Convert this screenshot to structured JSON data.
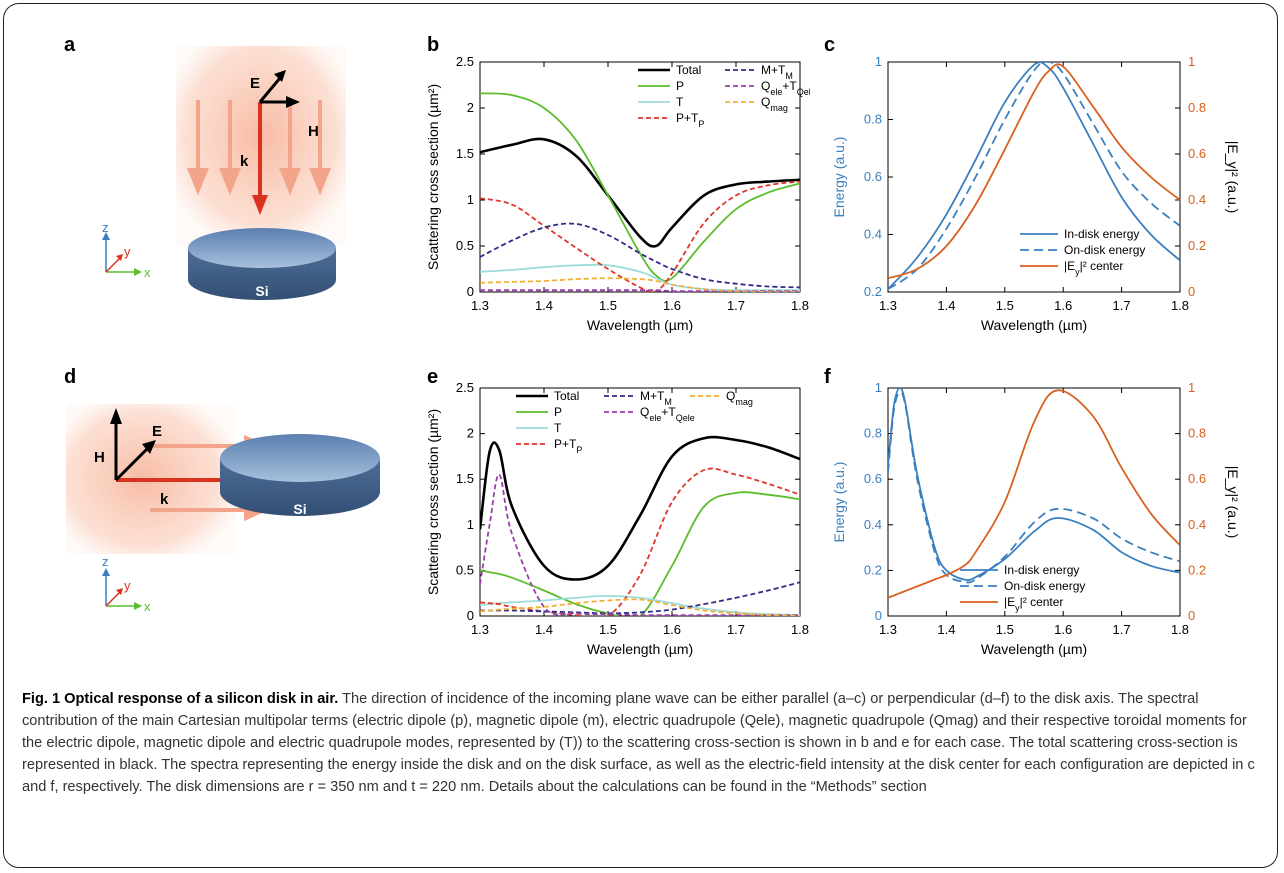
{
  "panel_labels": [
    "a",
    "b",
    "c",
    "d",
    "e",
    "f"
  ],
  "schematic": {
    "top": {
      "E": "E",
      "H": "H",
      "k": "k",
      "disk": "Si",
      "axes": {
        "z": "z",
        "y": "y",
        "x": "x"
      }
    },
    "bottom": {
      "E": "E",
      "H": "H",
      "k": "k",
      "disk": "Si",
      "axes": {
        "z": "z",
        "y": "y",
        "x": "x"
      }
    }
  },
  "colors": {
    "total": "#000000",
    "P": "#5bbd2b",
    "T": "#9edcdc",
    "PTP": "#e0362a",
    "MTM": "#2e2d87",
    "Qele": "#9b3fb0",
    "Qmag": "#f2b134",
    "energy_blue": "#3a7fc0",
    "ey_orange": "#d9601f"
  },
  "chart_data": [
    {
      "id": "b",
      "type": "line",
      "xlabel": "Wavelength (µm)",
      "ylabel": "Scattering cross section (µm²)",
      "xlim": [
        1.3,
        1.8
      ],
      "ylim": [
        0,
        2.5
      ],
      "xticks": [
        "1.3",
        "1.4",
        "1.5",
        "1.6",
        "1.7",
        "1.8"
      ],
      "yticks": [
        "0",
        "0.5",
        "1",
        "1.5",
        "2",
        "2.5"
      ],
      "x": [
        1.3,
        1.35,
        1.4,
        1.45,
        1.5,
        1.55,
        1.575,
        1.6,
        1.65,
        1.7,
        1.75,
        1.8
      ],
      "series": [
        {
          "name": "Total",
          "key": "total",
          "dash": false,
          "values": [
            1.52,
            1.6,
            1.66,
            1.48,
            1.05,
            0.6,
            0.5,
            0.7,
            1.05,
            1.17,
            1.2,
            1.22
          ]
        },
        {
          "name": "P",
          "key": "P",
          "dash": false,
          "values": [
            2.16,
            2.14,
            2.0,
            1.65,
            1.05,
            0.42,
            0.18,
            0.15,
            0.55,
            0.9,
            1.08,
            1.18
          ]
        },
        {
          "name": "T",
          "key": "T",
          "dash": false,
          "values": [
            0.22,
            0.24,
            0.27,
            0.29,
            0.29,
            0.22,
            0.15,
            0.08,
            0.03,
            0.02,
            0.02,
            0.02
          ]
        },
        {
          "name": "P+T_P",
          "key": "PTP",
          "dash": true,
          "values": [
            1.02,
            0.95,
            0.72,
            0.48,
            0.25,
            0.05,
            0.01,
            0.2,
            0.75,
            1.05,
            1.16,
            1.2
          ]
        },
        {
          "name": "M+T_M",
          "key": "MTM",
          "dash": true,
          "values": [
            0.38,
            0.56,
            0.7,
            0.74,
            0.62,
            0.42,
            0.33,
            0.25,
            0.14,
            0.09,
            0.06,
            0.05
          ]
        },
        {
          "name": "Q_ele+T_Qele",
          "key": "Qele",
          "dash": true,
          "values": [
            0.02,
            0.02,
            0.02,
            0.02,
            0.02,
            0.02,
            0.02,
            0.01,
            0.01,
            0.01,
            0.01,
            0.01
          ]
        },
        {
          "name": "Q_mag",
          "key": "Qmag",
          "dash": true,
          "values": [
            0.1,
            0.11,
            0.12,
            0.14,
            0.15,
            0.14,
            0.12,
            0.08,
            0.03,
            0.01,
            0.0,
            0.0
          ]
        }
      ],
      "legend": [
        [
          "Total",
          "P",
          "T",
          "P+T_P"
        ],
        [
          "M+T_M",
          "Q_ele+T_Qele",
          "Q_mag"
        ]
      ]
    },
    {
      "id": "c",
      "type": "line",
      "xlabel": "Wavelength (µm)",
      "ylabel": "Energy (a.u.)",
      "y2label": "|E_y|² (a.u.)",
      "xlim": [
        1.3,
        1.8
      ],
      "ylim": [
        0.2,
        1
      ],
      "y2lim": [
        0,
        1
      ],
      "xticks": [
        "1.3",
        "1.4",
        "1.5",
        "1.6",
        "1.7",
        "1.8"
      ],
      "yticks": [
        "0.2",
        "0.4",
        "0.6",
        "0.8",
        "1"
      ],
      "y2ticks": [
        "0",
        "0.2",
        "0.4",
        "0.6",
        "0.8",
        "1"
      ],
      "x": [
        1.3,
        1.35,
        1.4,
        1.45,
        1.5,
        1.55,
        1.575,
        1.6,
        1.65,
        1.7,
        1.75,
        1.8
      ],
      "series": [
        {
          "name": "In-disk energy",
          "key": "energy_blue",
          "axis": "left",
          "dash": false,
          "values": [
            0.21,
            0.32,
            0.47,
            0.66,
            0.86,
            0.99,
            0.98,
            0.91,
            0.72,
            0.53,
            0.4,
            0.31
          ]
        },
        {
          "name": "On-disk energy",
          "key": "energy_blue",
          "axis": "left",
          "dash": true,
          "values": [
            0.21,
            0.28,
            0.42,
            0.6,
            0.8,
            0.97,
            1.0,
            0.96,
            0.79,
            0.62,
            0.51,
            0.43
          ]
        },
        {
          "name": "|E_y|² center",
          "key": "ey_orange",
          "axis": "right",
          "dash": false,
          "values": [
            0.06,
            0.1,
            0.2,
            0.38,
            0.62,
            0.87,
            0.96,
            0.98,
            0.81,
            0.63,
            0.5,
            0.4
          ]
        }
      ],
      "legend": [
        "In-disk energy",
        "On-disk energy",
        "|E_y|² center"
      ]
    },
    {
      "id": "e",
      "type": "line",
      "xlabel": "Wavelength (µm)",
      "ylabel": "Scattering cross section (µm²)",
      "xlim": [
        1.3,
        1.8
      ],
      "ylim": [
        0,
        2.5
      ],
      "xticks": [
        "1.3",
        "1.4",
        "1.5",
        "1.6",
        "1.7",
        "1.8"
      ],
      "yticks": [
        "0",
        "0.5",
        "1",
        "1.5",
        "2",
        "2.5"
      ],
      "x": [
        1.3,
        1.315,
        1.33,
        1.35,
        1.4,
        1.45,
        1.5,
        1.55,
        1.6,
        1.65,
        1.7,
        1.75,
        1.8
      ],
      "series": [
        {
          "name": "Total",
          "key": "total",
          "dash": false,
          "values": [
            0.95,
            1.8,
            1.82,
            1.2,
            0.55,
            0.4,
            0.55,
            1.1,
            1.75,
            1.95,
            1.93,
            1.85,
            1.72
          ]
        },
        {
          "name": "P",
          "key": "P",
          "dash": false,
          "values": [
            0.5,
            0.48,
            0.46,
            0.42,
            0.28,
            0.13,
            0.03,
            0.0,
            0.55,
            1.2,
            1.35,
            1.33,
            1.28
          ]
        },
        {
          "name": "T",
          "key": "T",
          "dash": false,
          "values": [
            0.12,
            0.13,
            0.14,
            0.15,
            0.17,
            0.2,
            0.22,
            0.2,
            0.14,
            0.08,
            0.04,
            0.02,
            0.01
          ]
        },
        {
          "name": "P+T_P",
          "key": "PTP",
          "dash": true,
          "values": [
            0.15,
            0.14,
            0.13,
            0.1,
            0.05,
            0.01,
            0.0,
            0.45,
            1.25,
            1.6,
            1.55,
            1.45,
            1.33
          ]
        },
        {
          "name": "M+T_M",
          "key": "MTM",
          "dash": true,
          "values": [
            0.06,
            0.06,
            0.06,
            0.06,
            0.05,
            0.04,
            0.03,
            0.04,
            0.07,
            0.13,
            0.2,
            0.28,
            0.37
          ]
        },
        {
          "name": "Q_ele+T_Qele",
          "key": "Qele",
          "dash": true,
          "values": [
            0.35,
            1.0,
            1.55,
            0.9,
            0.1,
            0.03,
            0.02,
            0.01,
            0.01,
            0.01,
            0.01,
            0.01,
            0.01
          ]
        },
        {
          "name": "Q_mag",
          "key": "Qmag",
          "dash": true,
          "values": [
            0.05,
            0.06,
            0.07,
            0.08,
            0.1,
            0.14,
            0.17,
            0.18,
            0.12,
            0.06,
            0.03,
            0.01,
            0.0
          ]
        }
      ],
      "legend": [
        [
          "Total",
          "P",
          "T",
          "P+T_P"
        ],
        [
          "M+T_M",
          "Q_ele+T_Qele"
        ],
        [
          "Q_mag"
        ]
      ]
    },
    {
      "id": "f",
      "type": "line",
      "xlabel": "Wavelength (µm)",
      "ylabel": "Energy (a.u.)",
      "y2label": "|E_y|² (a.u.)",
      "xlim": [
        1.3,
        1.8
      ],
      "ylim": [
        0,
        1
      ],
      "y2lim": [
        0,
        1
      ],
      "xticks": [
        "1.3",
        "1.4",
        "1.5",
        "1.6",
        "1.7",
        "1.8"
      ],
      "yticks": [
        "0",
        "0.2",
        "0.4",
        "0.6",
        "0.8",
        "1"
      ],
      "y2ticks": [
        "0",
        "0.2",
        "0.4",
        "0.6",
        "0.8",
        "1"
      ],
      "x": [
        1.3,
        1.31,
        1.32,
        1.33,
        1.35,
        1.38,
        1.4,
        1.43,
        1.45,
        1.5,
        1.55,
        1.59,
        1.65,
        1.7,
        1.75,
        1.8
      ],
      "series": [
        {
          "name": "In-disk energy",
          "key": "energy_blue",
          "axis": "left",
          "dash": false,
          "values": [
            0.66,
            0.92,
            1.0,
            0.93,
            0.62,
            0.3,
            0.2,
            0.16,
            0.17,
            0.25,
            0.37,
            0.43,
            0.38,
            0.28,
            0.22,
            0.19
          ]
        },
        {
          "name": "On-disk energy",
          "key": "energy_blue",
          "axis": "left",
          "dash": true,
          "values": [
            0.63,
            0.9,
            0.98,
            0.92,
            0.6,
            0.28,
            0.18,
            0.15,
            0.16,
            0.26,
            0.41,
            0.47,
            0.43,
            0.34,
            0.28,
            0.24
          ]
        },
        {
          "name": "|E_y|² center",
          "key": "ey_orange",
          "axis": "right",
          "dash": false,
          "values": [
            0.08,
            0.09,
            0.1,
            0.11,
            0.13,
            0.16,
            0.18,
            0.22,
            0.28,
            0.5,
            0.85,
            0.99,
            0.88,
            0.65,
            0.45,
            0.31
          ]
        }
      ],
      "legend": [
        "In-disk energy",
        "On-disk energy",
        "|E_y|² center"
      ]
    }
  ],
  "caption": {
    "title": "Fig. 1 Optical response of a silicon disk in air.",
    "body": " The direction of incidence of the incoming plane wave can be either parallel (a–c) or perpendicular (d–f) to the disk axis. The spectral contribution of the main Cartesian multipolar terms (electric dipole (p), magnetic dipole (m), electric quadrupole (Qele), magnetic quadrupole (Qmag) and their respective toroidal moments for the electric dipole, magnetic dipole and electric quadrupole modes, represented by (T)) to the scattering cross-section is shown in b and e for each case. The total scattering cross-section is represented in black. The spectra representing the energy inside the disk and on the disk surface, as well as the electric-field intensity at the disk center for each configuration are depicted in c and f, respectively. The disk dimensions are r = 350 nm and t = 220 nm. Details about the calculations can be found in the “Methods” section"
  }
}
